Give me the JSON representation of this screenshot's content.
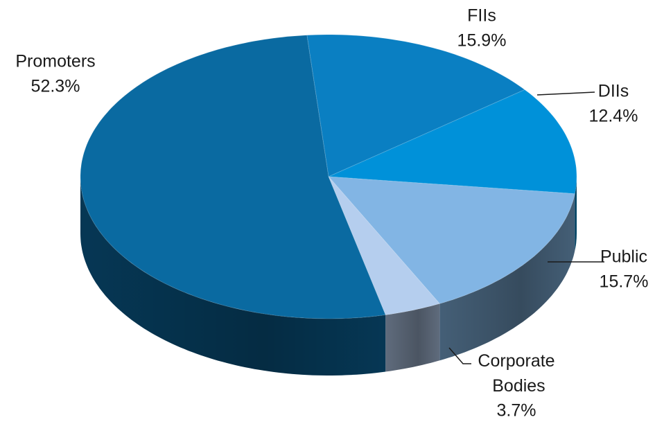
{
  "chart_data": {
    "type": "pie3d",
    "categories": [
      "FIIs",
      "DIIs",
      "Public",
      "Corporate Bodies",
      "Promoters"
    ],
    "values": [
      15.9,
      12.4,
      15.7,
      3.7,
      52.3
    ],
    "value_labels": [
      "15.9%",
      "12.4%",
      "15.7%",
      "3.7%",
      "52.3%"
    ],
    "colors": [
      "#0a7fc2",
      "#0091d9",
      "#82b5e4",
      "#b5ceee",
      "#0a6aa1"
    ]
  }
}
